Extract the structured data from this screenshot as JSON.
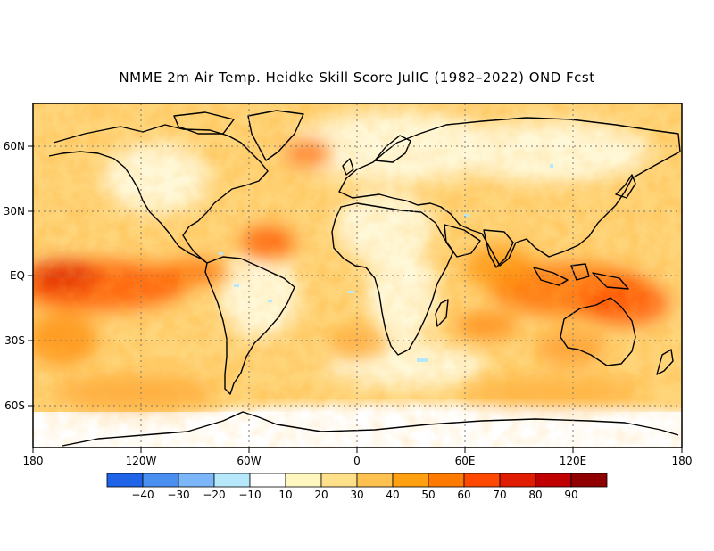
{
  "title": "NMME 2m Air Temp. Heidke Skill Score JulIC (1982–2022) OND Fcst",
  "map": {
    "lat_labels": [
      "60N",
      "30N",
      "EQ",
      "30S",
      "60S"
    ],
    "lon_labels": [
      "180",
      "120W",
      "60W",
      "0",
      "60E",
      "120E",
      "180"
    ],
    "lat_values": [
      60,
      30,
      0,
      -30,
      -60
    ],
    "lon_values": [
      -180,
      -120,
      -60,
      0,
      60,
      120,
      180
    ],
    "lat_range": [
      -80,
      80
    ],
    "lon_range": [
      -180,
      180
    ],
    "grid": true,
    "coastlines": true
  },
  "colorbar": {
    "labels": [
      "−40",
      "−30",
      "−20",
      "−10",
      "10",
      "20",
      "30",
      "40",
      "50",
      "60",
      "70",
      "80",
      "90"
    ],
    "colors": [
      "#1f64e8",
      "#4a8ff0",
      "#7ab6f8",
      "#b4e8fa",
      "#ffffff",
      "#fff6c0",
      "#ffe08a",
      "#ffc250",
      "#ffa010",
      "#ff7a00",
      "#ff4800",
      "#e01d00",
      "#c00000",
      "#900000"
    ]
  }
}
